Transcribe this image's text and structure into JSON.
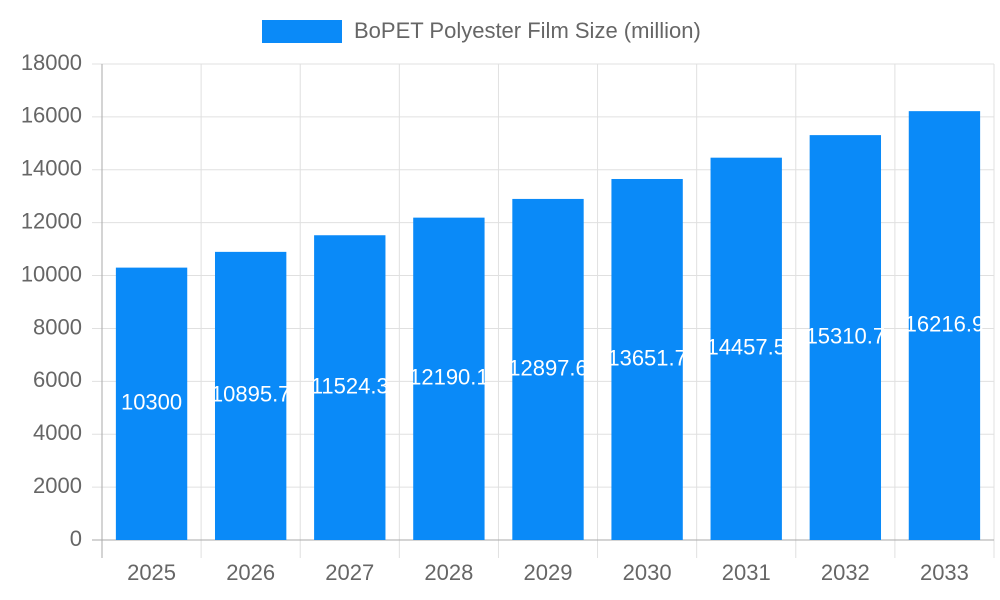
{
  "chart_data": {
    "type": "bar",
    "legend": "BoPET Polyester Film Size (million)",
    "categories": [
      "2025",
      "2026",
      "2027",
      "2028",
      "2029",
      "2030",
      "2031",
      "2032",
      "2033"
    ],
    "values": [
      10300,
      10895.7,
      11524.3,
      12190.1,
      12897.6,
      13651.7,
      14457.5,
      15310.7,
      16216.9
    ],
    "color": "#0a8af8",
    "ylim": [
      0,
      18000
    ],
    "yticks": [
      0,
      2000,
      4000,
      6000,
      8000,
      10000,
      12000,
      14000,
      16000,
      18000
    ],
    "grid": true
  }
}
